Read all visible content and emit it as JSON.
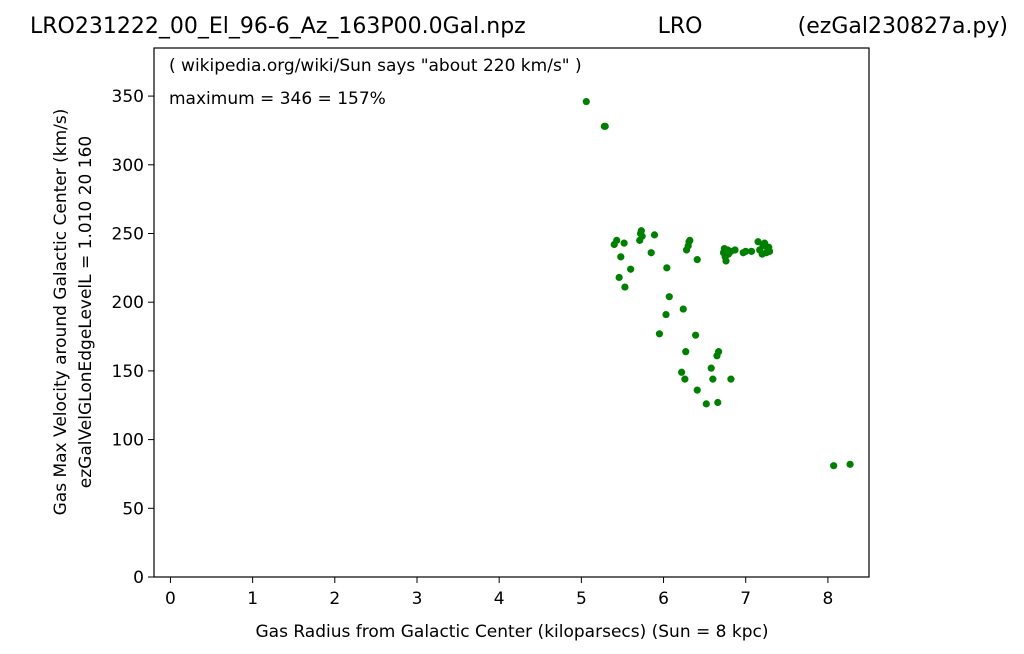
{
  "header": {
    "left": "LRO231222_00_El_96-6_Az_163P00.0Gal.npz",
    "center": "LRO",
    "right": "(ezGal230827a.py)"
  },
  "chart_data": {
    "type": "scatter",
    "title": "",
    "xlabel": "Gas Radius from Galactic Center (kiloparsecs)  (Sun = 8 kpc)",
    "ylabel_lines": [
      "Gas Max Velocity around Galactic Center (km/s)",
      "ezGalVelGLonEdgeLevelL = 1.010  20  160"
    ],
    "annotations": [
      "( wikipedia.org/wiki/Sun says \"about 220 km/s\" )",
      "maximum = 346 = 157%"
    ],
    "xlim": [
      -0.2,
      8.5
    ],
    "ylim": [
      0,
      385
    ],
    "xticks": [
      0,
      1,
      2,
      3,
      4,
      5,
      6,
      7,
      8
    ],
    "yticks": [
      0,
      50,
      100,
      150,
      200,
      250,
      300,
      350
    ],
    "grid": false,
    "marker_color": "#008000",
    "points": [
      [
        5.06,
        346
      ],
      [
        5.28,
        328
      ],
      [
        5.29,
        328
      ],
      [
        5.4,
        242
      ],
      [
        5.43,
        245
      ],
      [
        5.52,
        243
      ],
      [
        5.48,
        233
      ],
      [
        5.46,
        218
      ],
      [
        5.53,
        211
      ],
      [
        5.6,
        224
      ],
      [
        5.71,
        245
      ],
      [
        5.72,
        250
      ],
      [
        5.73,
        252
      ],
      [
        5.74,
        248
      ],
      [
        5.85,
        236
      ],
      [
        5.89,
        249
      ],
      [
        6.04,
        225
      ],
      [
        6.07,
        204
      ],
      [
        6.24,
        195
      ],
      [
        6.03,
        191
      ],
      [
        5.95,
        177
      ],
      [
        6.28,
        238
      ],
      [
        6.3,
        241
      ],
      [
        6.31,
        244
      ],
      [
        6.32,
        245
      ],
      [
        6.41,
        231
      ],
      [
        6.39,
        176
      ],
      [
        6.27,
        164
      ],
      [
        6.22,
        149
      ],
      [
        6.26,
        144
      ],
      [
        6.65,
        161
      ],
      [
        6.67,
        164
      ],
      [
        6.58,
        152
      ],
      [
        6.6,
        144
      ],
      [
        6.41,
        136
      ],
      [
        6.52,
        126
      ],
      [
        6.66,
        127
      ],
      [
        6.82,
        144
      ],
      [
        6.73,
        236
      ],
      [
        6.74,
        239
      ],
      [
        6.75,
        233
      ],
      [
        6.76,
        230
      ],
      [
        6.78,
        238
      ],
      [
        6.79,
        235
      ],
      [
        6.8,
        237
      ],
      [
        6.82,
        237
      ],
      [
        6.87,
        238
      ],
      [
        6.97,
        236
      ],
      [
        7.0,
        237
      ],
      [
        7.07,
        237
      ],
      [
        7.15,
        244
      ],
      [
        7.17,
        238
      ],
      [
        7.2,
        235
      ],
      [
        7.21,
        241
      ],
      [
        7.23,
        243
      ],
      [
        7.25,
        236
      ],
      [
        7.27,
        238
      ],
      [
        7.28,
        240
      ],
      [
        7.29,
        237
      ],
      [
        8.07,
        81
      ],
      [
        8.27,
        82
      ]
    ]
  }
}
